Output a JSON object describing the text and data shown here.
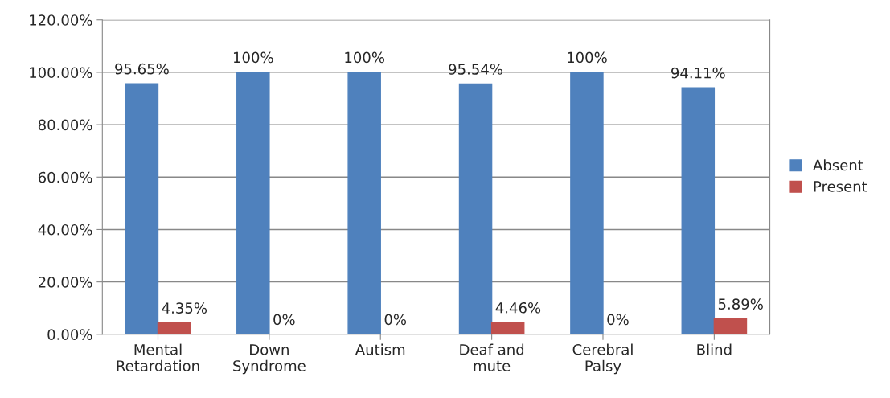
{
  "chart_data": {
    "type": "bar",
    "categories": [
      "Mental\nRetardation",
      "Down\nSyndrome",
      "Autism",
      "Deaf and\nmute",
      "Cerebral\nPalsy",
      "Blind"
    ],
    "series": [
      {
        "name": "Absent",
        "color": "#4f81bd",
        "values": [
          95.65,
          100,
          100,
          95.54,
          100,
          94.11
        ],
        "value_labels": [
          "95.65%",
          "100%",
          "100%",
          "95.54%",
          "100%",
          "94.11%"
        ]
      },
      {
        "name": "Present",
        "color": "#c0504d",
        "values": [
          4.35,
          0,
          0,
          4.46,
          0,
          5.89
        ],
        "value_labels": [
          "4.35%",
          "0%",
          "0%",
          "4.46%",
          "0%",
          "5.89%"
        ]
      }
    ],
    "ylim": [
      0,
      120
    ],
    "yticks": [
      {
        "value": 0,
        "label": "0.00%"
      },
      {
        "value": 20,
        "label": "20.00%"
      },
      {
        "value": 40,
        "label": "40.00%"
      },
      {
        "value": 60,
        "label": "60.00%"
      },
      {
        "value": 80,
        "label": "80.00%"
      },
      {
        "value": 100,
        "label": "100.00%"
      },
      {
        "value": 120,
        "label": "120.00%"
      }
    ],
    "grid": "y",
    "legend": "right"
  }
}
